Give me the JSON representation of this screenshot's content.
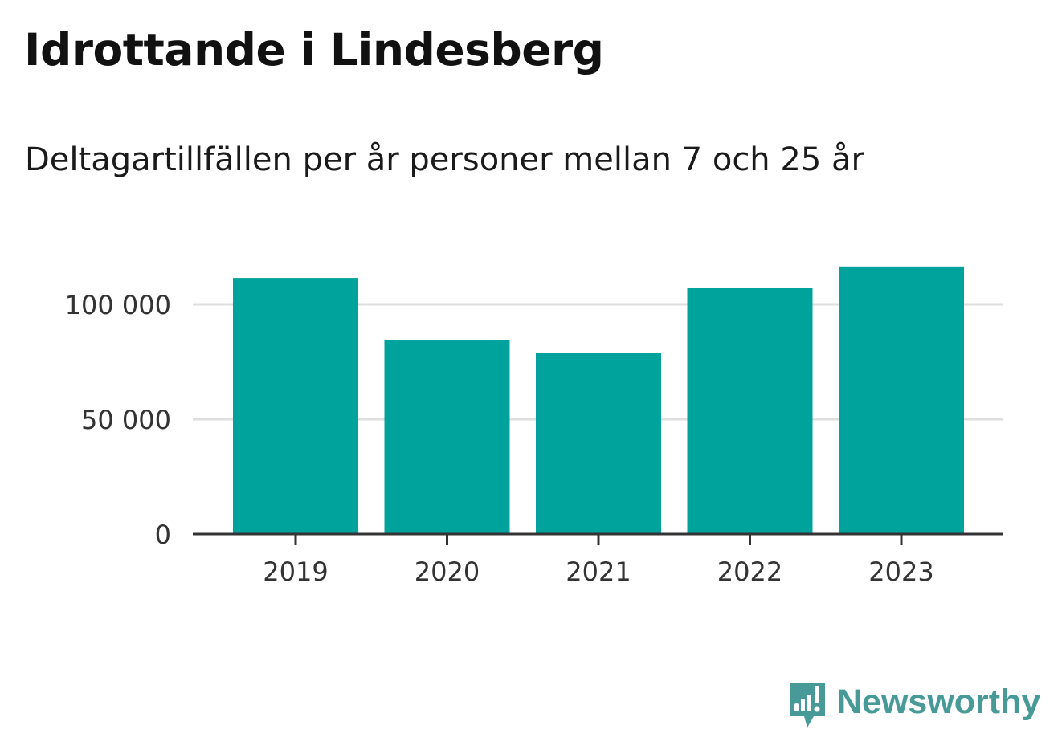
{
  "title": "Idrottande i Lindesberg",
  "subtitle": "Deltagartillfällen per år personer mellan 7 och 25 år",
  "brand": {
    "name": "Newsworthy",
    "color": "#479a98"
  },
  "chart_data": {
    "type": "bar",
    "title": "Idrottande i Lindesberg",
    "subtitle": "Deltagartillfällen per år personer mellan 7 och 25 år",
    "categories": [
      "2019",
      "2020",
      "2021",
      "2022",
      "2023"
    ],
    "values": [
      111500,
      84500,
      79000,
      107000,
      116500
    ],
    "y_ticks": [
      0,
      50000,
      100000
    ],
    "y_tick_labels": [
      "0",
      "50 000",
      "100 000"
    ],
    "ylim": [
      0,
      125000
    ],
    "grid": true,
    "bar_color": "#00a39b",
    "xlabel": "",
    "ylabel": ""
  }
}
